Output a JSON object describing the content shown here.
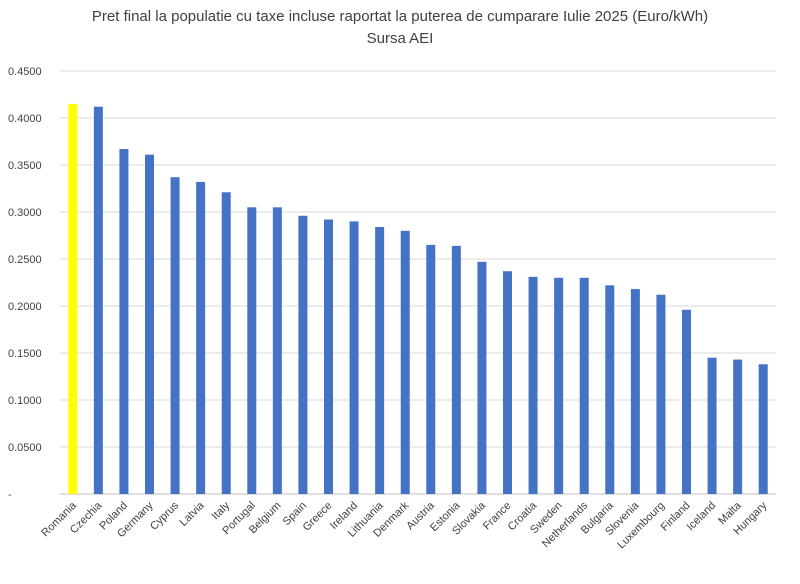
{
  "chart_data": {
    "type": "bar",
    "title": "Pret final la populatie cu taxe incluse raportat la puterea de cumparare Iulie 2025 (Euro/kWh)",
    "subtitle": "Sursa AEI",
    "categories": [
      "Romania",
      "Czechia",
      "Poland",
      "Germany",
      "Cyprus",
      "Latvia",
      "Italy",
      "Portugal",
      "Belgium",
      "Spain",
      "Greece",
      "Ireland",
      "Lithuania",
      "Denmark",
      "Austria",
      "Estonia",
      "Slovakia",
      "France",
      "Croatia",
      "Sweden",
      "Netherlands",
      "Bulgaria",
      "Slovenia",
      "Luxembourg",
      "Finland",
      "Iceland",
      "Malta",
      "Hungary"
    ],
    "values": [
      0.415,
      0.412,
      0.367,
      0.361,
      0.337,
      0.332,
      0.321,
      0.305,
      0.305,
      0.296,
      0.292,
      0.29,
      0.284,
      0.28,
      0.265,
      0.264,
      0.247,
      0.237,
      0.231,
      0.23,
      0.23,
      0.222,
      0.218,
      0.212,
      0.196,
      0.145,
      0.143,
      0.138
    ],
    "highlight": {
      "category": "Romania",
      "color": "#FFFF00"
    },
    "bar_color": "#4472C4",
    "ylim": [
      0,
      0.45
    ],
    "yticks": [
      "-",
      "0.0500",
      "0.1000",
      "0.1500",
      "0.2000",
      "0.2500",
      "0.3000",
      "0.3500",
      "0.4000",
      "0.4500"
    ],
    "grid": true,
    "legend": "none"
  }
}
